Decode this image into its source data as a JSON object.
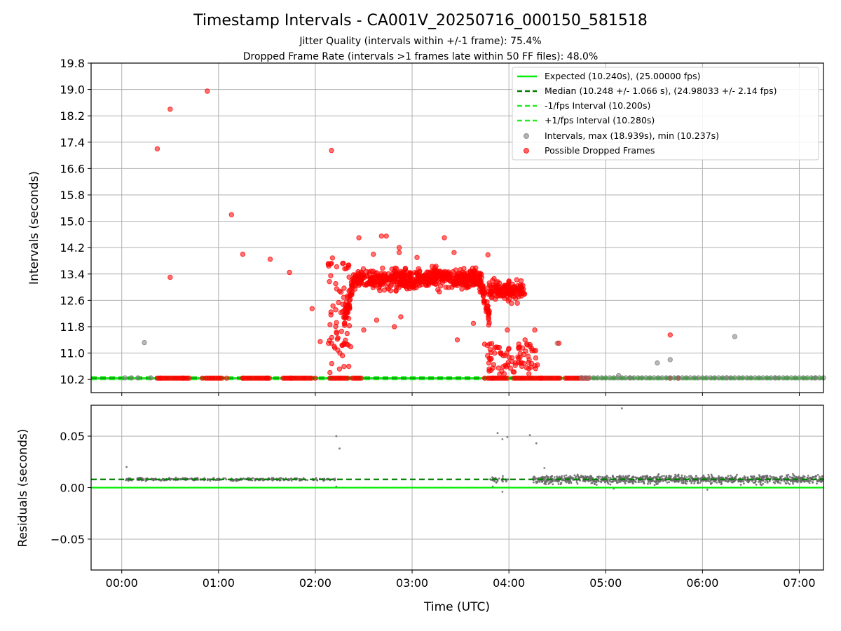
{
  "title": "Timestamp Intervals - CA001V_20250716_000150_581518",
  "subtitle_1": "Jitter Quality (intervals within +/-1 frame): 75.4%",
  "subtitle_2": "Dropped Frame Rate (intervals >1 frames late within 50 FF files): 48.0%",
  "colors": {
    "expected": "#00ee00",
    "median": "#007f00",
    "fps_band": "#22ee22",
    "intervals": "#808080",
    "dropped": "#ff0000",
    "residuals": "#666666"
  },
  "chart_data": [
    {
      "type": "scatter",
      "panel": "intervals",
      "ylabel": "Intervals (seconds)",
      "xlim": [
        "23:41",
        "07:15"
      ],
      "ylim": [
        9.8,
        19.8
      ],
      "yticks": [
        "10.2",
        "11.0",
        "11.8",
        "12.6",
        "13.4",
        "14.2",
        "15.0",
        "15.8",
        "16.6",
        "17.4",
        "18.2",
        "19.0",
        "19.8"
      ],
      "grid": true,
      "legend_position": "top-right",
      "reference_lines": [
        {
          "name": "Expected (10.240s), (25.00000 fps)",
          "y": 10.24,
          "style": "solid",
          "color": "#00ee00"
        },
        {
          "name": "Median (10.248 +/- 1.066 s), (24.98033 +/- 2.14 fps)",
          "y": 10.248,
          "style": "dashed",
          "color": "#007f00"
        },
        {
          "name": "-1/fps Interval (10.200s)",
          "y": 10.2,
          "style": "dashed",
          "color": "#22ee22"
        },
        {
          "name": "+1/fps Interval (10.280s)",
          "y": 10.28,
          "style": "dashed",
          "color": "#22ee22"
        }
      ],
      "series": [
        {
          "name": "Intervals, max (18.939s), min (10.237s)",
          "points": [
            [
              "00:02",
              10.25
            ],
            [
              "00:06",
              10.25
            ],
            [
              "00:10",
              10.25
            ],
            [
              "00:14",
              11.32
            ],
            [
              "00:18",
              10.25
            ],
            [
              "04:30",
              11.3
            ],
            [
              "05:08",
              10.32
            ],
            [
              "05:32",
              10.7
            ],
            [
              "05:40",
              10.8
            ],
            [
              "06:20",
              11.5
            ],
            [
              "04:45",
              10.25
            ],
            [
              "05:15",
              10.25
            ],
            [
              "05:45",
              10.25
            ],
            [
              "06:15",
              10.25
            ],
            [
              "06:45",
              10.25
            ],
            [
              "07:10",
              10.25
            ]
          ]
        },
        {
          "name": "Possible Dropped Frames",
          "points": [
            [
              "00:22",
              17.2
            ],
            [
              "00:30",
              18.4
            ],
            [
              "00:30",
              13.3
            ],
            [
              "00:53",
              18.95
            ],
            [
              "01:08",
              15.2
            ],
            [
              "01:15",
              14.0
            ],
            [
              "01:32",
              13.85
            ],
            [
              "01:44",
              13.45
            ],
            [
              "01:58",
              12.35
            ],
            [
              "02:03",
              11.35
            ],
            [
              "02:10",
              17.15
            ],
            [
              "02:10",
              11.3
            ],
            [
              "04:31",
              11.3
            ],
            [
              "05:40",
              11.55
            ],
            [
              "02:27",
              14.5
            ],
            [
              "02:41",
              14.55
            ],
            [
              "02:44",
              14.55
            ],
            [
              "02:36",
              14.0
            ],
            [
              "02:52",
              14.2
            ],
            [
              "02:52",
              14.05
            ],
            [
              "03:20",
              14.5
            ],
            [
              "03:03",
              13.9
            ],
            [
              "03:26",
              14.05
            ],
            [
              "03:47",
              13.98
            ],
            [
              "02:30",
              11.7
            ],
            [
              "02:38",
              12.0
            ],
            [
              "02:49",
              11.8
            ],
            [
              "02:53",
              12.1
            ],
            [
              "03:28",
              11.4
            ],
            [
              "03:38",
              11.9
            ],
            [
              "03:59",
              11.7
            ],
            [
              "04:16",
              11.7
            ],
            [
              "04:08",
              10.6
            ],
            [
              "04:10",
              11.4
            ],
            [
              "04:13",
              11.2
            ],
            [
              "00:24",
              10.24
            ],
            [
              "00:38",
              10.24
            ],
            [
              "00:50",
              10.24
            ],
            [
              "01:05",
              10.24
            ],
            [
              "01:15",
              10.24
            ],
            [
              "01:30",
              10.24
            ],
            [
              "01:45",
              10.24
            ],
            [
              "02:00",
              10.24
            ],
            [
              "05:40",
              10.24
            ],
            [
              "05:45",
              10.24
            ],
            [
              "04:35",
              10.24
            ],
            [
              "04:20",
              10.24
            ],
            [
              "03:50",
              10.24
            ],
            [
              "03:45",
              10.24
            ]
          ]
        }
      ]
    },
    {
      "type": "scatter",
      "panel": "residuals",
      "xlabel": "Time (UTC)",
      "ylabel": "Residuals (seconds)",
      "xlim": [
        "23:41",
        "07:15"
      ],
      "ylim": [
        -0.08,
        0.08
      ],
      "xticks": [
        "00:00",
        "01:00",
        "02:00",
        "03:00",
        "04:00",
        "05:00",
        "06:00",
        "07:00"
      ],
      "yticks": [
        "0.05",
        "0.00",
        "−0.05"
      ],
      "grid": true,
      "reference_lines": [
        {
          "name": "Expected",
          "y": 0.0,
          "style": "solid",
          "color": "#00ee00"
        },
        {
          "name": "Median",
          "y": 0.008,
          "style": "dashed",
          "color": "#007f00"
        }
      ],
      "series": [
        {
          "name": "Residuals",
          "segments": [
            {
              "from": "00:02",
              "to": "02:13",
              "center": 0.008,
              "spread": 0.002
            },
            {
              "from": "03:48",
              "to": "04:00",
              "center": 0.008,
              "spread": 0.004
            },
            {
              "from": "04:15",
              "to": "07:15",
              "center": 0.008,
              "spread": 0.006
            }
          ],
          "outliers": [
            [
              "00:03",
              0.02
            ],
            [
              "02:13",
              0.05
            ],
            [
              "02:15",
              0.038
            ],
            [
              "03:53",
              0.053
            ],
            [
              "03:56",
              0.047
            ],
            [
              "03:59",
              0.049
            ],
            [
              "04:13",
              0.051
            ],
            [
              "04:17",
              0.043
            ],
            [
              "05:10",
              0.077
            ],
            [
              "03:56",
              -0.004
            ],
            [
              "02:13",
              0.001
            ],
            [
              "05:05",
              -0.001
            ],
            [
              "06:03",
              -0.002
            ],
            [
              "03:50",
              0.001
            ],
            [
              "04:22",
              0.019
            ]
          ]
        }
      ]
    }
  ]
}
